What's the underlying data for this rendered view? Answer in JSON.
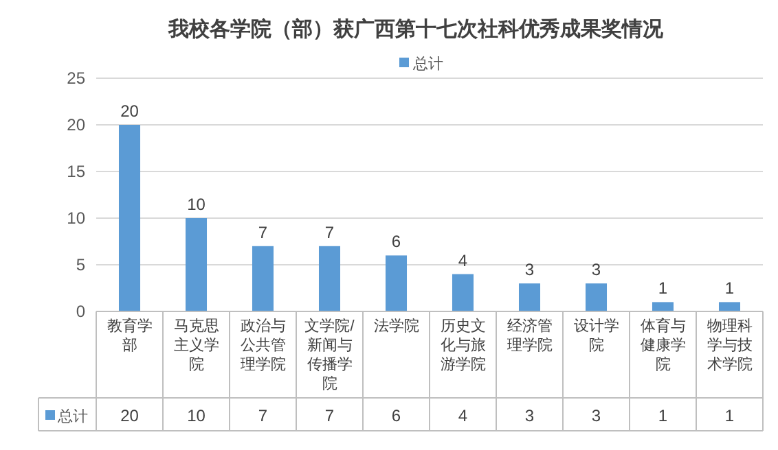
{
  "chart_data": {
    "type": "bar",
    "title": "我校各学院（部）获广西第十七次社科优秀成果奖情况",
    "categories": [
      "教育学部",
      "马克思主义学院",
      "政治与公共管理学院",
      "文学院/新闻与传播学院",
      "法学院",
      "历史文化与旅游学院",
      "经济管理学院",
      "设计学院",
      "体育与健康学院",
      "物理科学与技术学院"
    ],
    "series": [
      {
        "name": "总计",
        "color": "#5b9bd5",
        "values": [
          20,
          10,
          7,
          7,
          6,
          4,
          3,
          3,
          1,
          1
        ],
        "value_labels": [
          "20",
          "10",
          "7",
          "7",
          "6",
          "4",
          "3",
          "3",
          "1",
          "1"
        ]
      }
    ],
    "annotations": [
      "20",
      "10",
      "7",
      "7",
      "6",
      "4",
      "3",
      "3",
      "1",
      "1"
    ],
    "ylim": [
      0,
      25
    ],
    "yticks": [
      0,
      5,
      10,
      15,
      20,
      25
    ],
    "grid": "y",
    "legend": "top",
    "data_labels": true
  }
}
